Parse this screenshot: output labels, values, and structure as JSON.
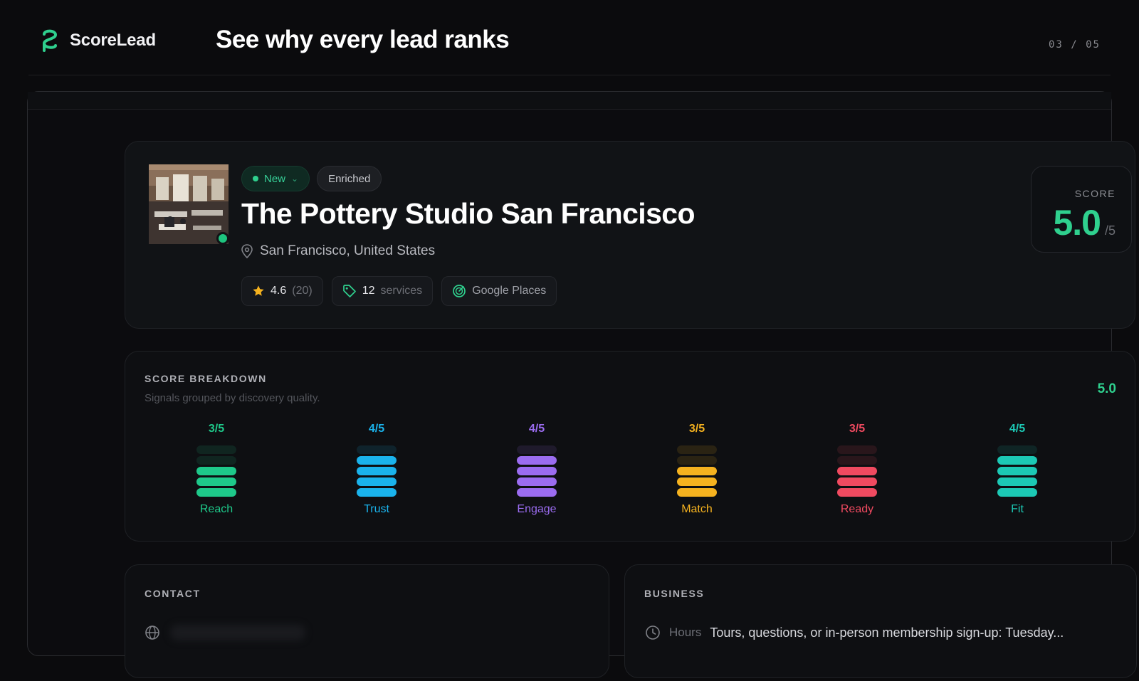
{
  "brand": {
    "name": "ScoreLead",
    "logo_icon": "scorelead-logo-icon",
    "accent": "#2fd08e"
  },
  "header": {
    "title": "See why every lead ranks",
    "pager": "03 / 05"
  },
  "lead": {
    "status_chip": "New",
    "tag_chip": "Enriched",
    "name": "The Pottery Studio San Francisco",
    "location": "San Francisco, United States",
    "rating": "4.6",
    "review_count": "(20)",
    "services_count": "12",
    "services_label": "services",
    "source": "Google Places",
    "score_label": "SCORE",
    "score_value": "5.0",
    "score_max": "/5"
  },
  "breakdown": {
    "title": "SCORE BREAKDOWN",
    "subtitle": "Signals grouped by discovery quality.",
    "total": "5.0",
    "signals": [
      {
        "name": "Reach",
        "score": "3/5",
        "value": 3,
        "max": 5,
        "color": "#1ec98a"
      },
      {
        "name": "Trust",
        "score": "4/5",
        "value": 4,
        "max": 5,
        "color": "#1ab3ec"
      },
      {
        "name": "Engage",
        "score": "4/5",
        "value": 4,
        "max": 5,
        "color": "#9b6cf0"
      },
      {
        "name": "Match",
        "score": "3/5",
        "value": 3,
        "max": 5,
        "color": "#f5b21f"
      },
      {
        "name": "Ready",
        "score": "3/5",
        "value": 3,
        "max": 5,
        "color": "#f04a60"
      },
      {
        "name": "Fit",
        "score": "4/5",
        "value": 4,
        "max": 5,
        "color": "#1cc9b5"
      }
    ]
  },
  "contact": {
    "title": "CONTACT"
  },
  "business": {
    "title": "BUSINESS",
    "hours_label": "Hours",
    "hours_value": "Tours, questions, or in-person membership sign-up: Tuesday..."
  }
}
